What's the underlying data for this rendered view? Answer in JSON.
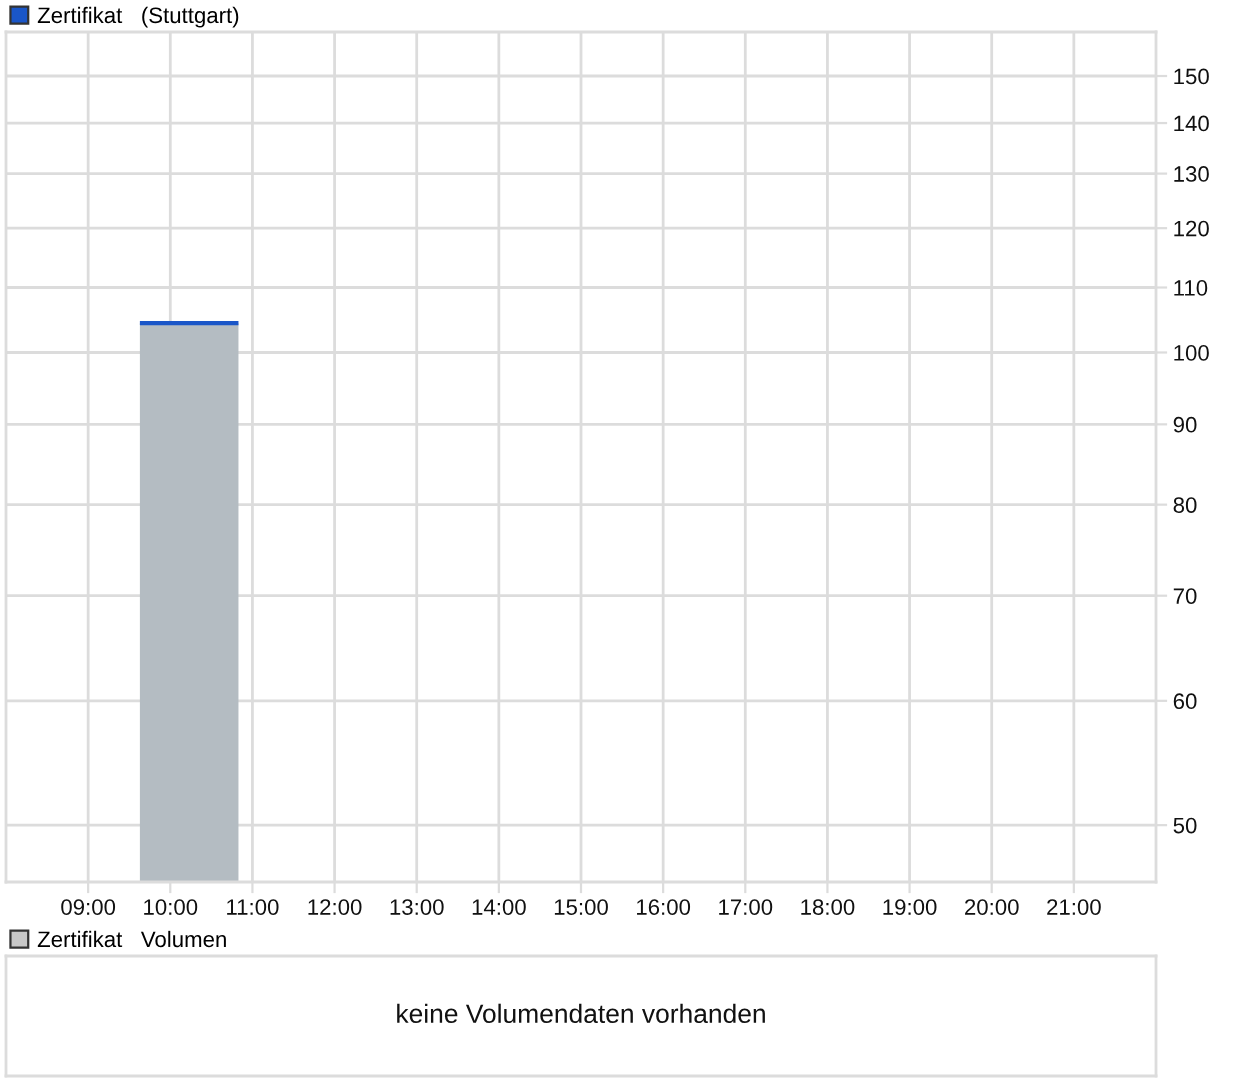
{
  "chart_data": [
    {
      "type": "area",
      "x": [
        9.63,
        10.83
      ],
      "series": [
        {
          "name": "Zertifikat   (Stuttgart)",
          "color": "#1a56c8",
          "values": [
            104.4,
            104.4
          ]
        }
      ],
      "log": true,
      "xlim": [
        8,
        22
      ],
      "xticks": [
        {
          "value": 9,
          "label": "09:00"
        },
        {
          "value": 10,
          "label": "10:00"
        },
        {
          "value": 11,
          "label": "11:00"
        },
        {
          "value": 12,
          "label": "12:00"
        },
        {
          "value": 13,
          "label": "13:00"
        },
        {
          "value": 14,
          "label": "14:00"
        },
        {
          "value": 15,
          "label": "15:00"
        },
        {
          "value": 16,
          "label": "16:00"
        },
        {
          "value": 17,
          "label": "17:00"
        },
        {
          "value": 18,
          "label": "18:00"
        },
        {
          "value": 19,
          "label": "19:00"
        },
        {
          "value": 20,
          "label": "20:00"
        },
        {
          "value": 21,
          "label": "21:00"
        }
      ],
      "ylim": [
        46,
        160
      ],
      "yticks": [
        50,
        60,
        70,
        80,
        90,
        100,
        110,
        120,
        130,
        140,
        150
      ],
      "grid": true,
      "legend": "top left"
    },
    {
      "type": "other",
      "series": [
        {
          "name": "Zertifikat   Volumen",
          "color": "#c8c8c8"
        }
      ],
      "annotations": [
        "keine Volumendaten vorhanden"
      ],
      "legend": "top left"
    }
  ]
}
